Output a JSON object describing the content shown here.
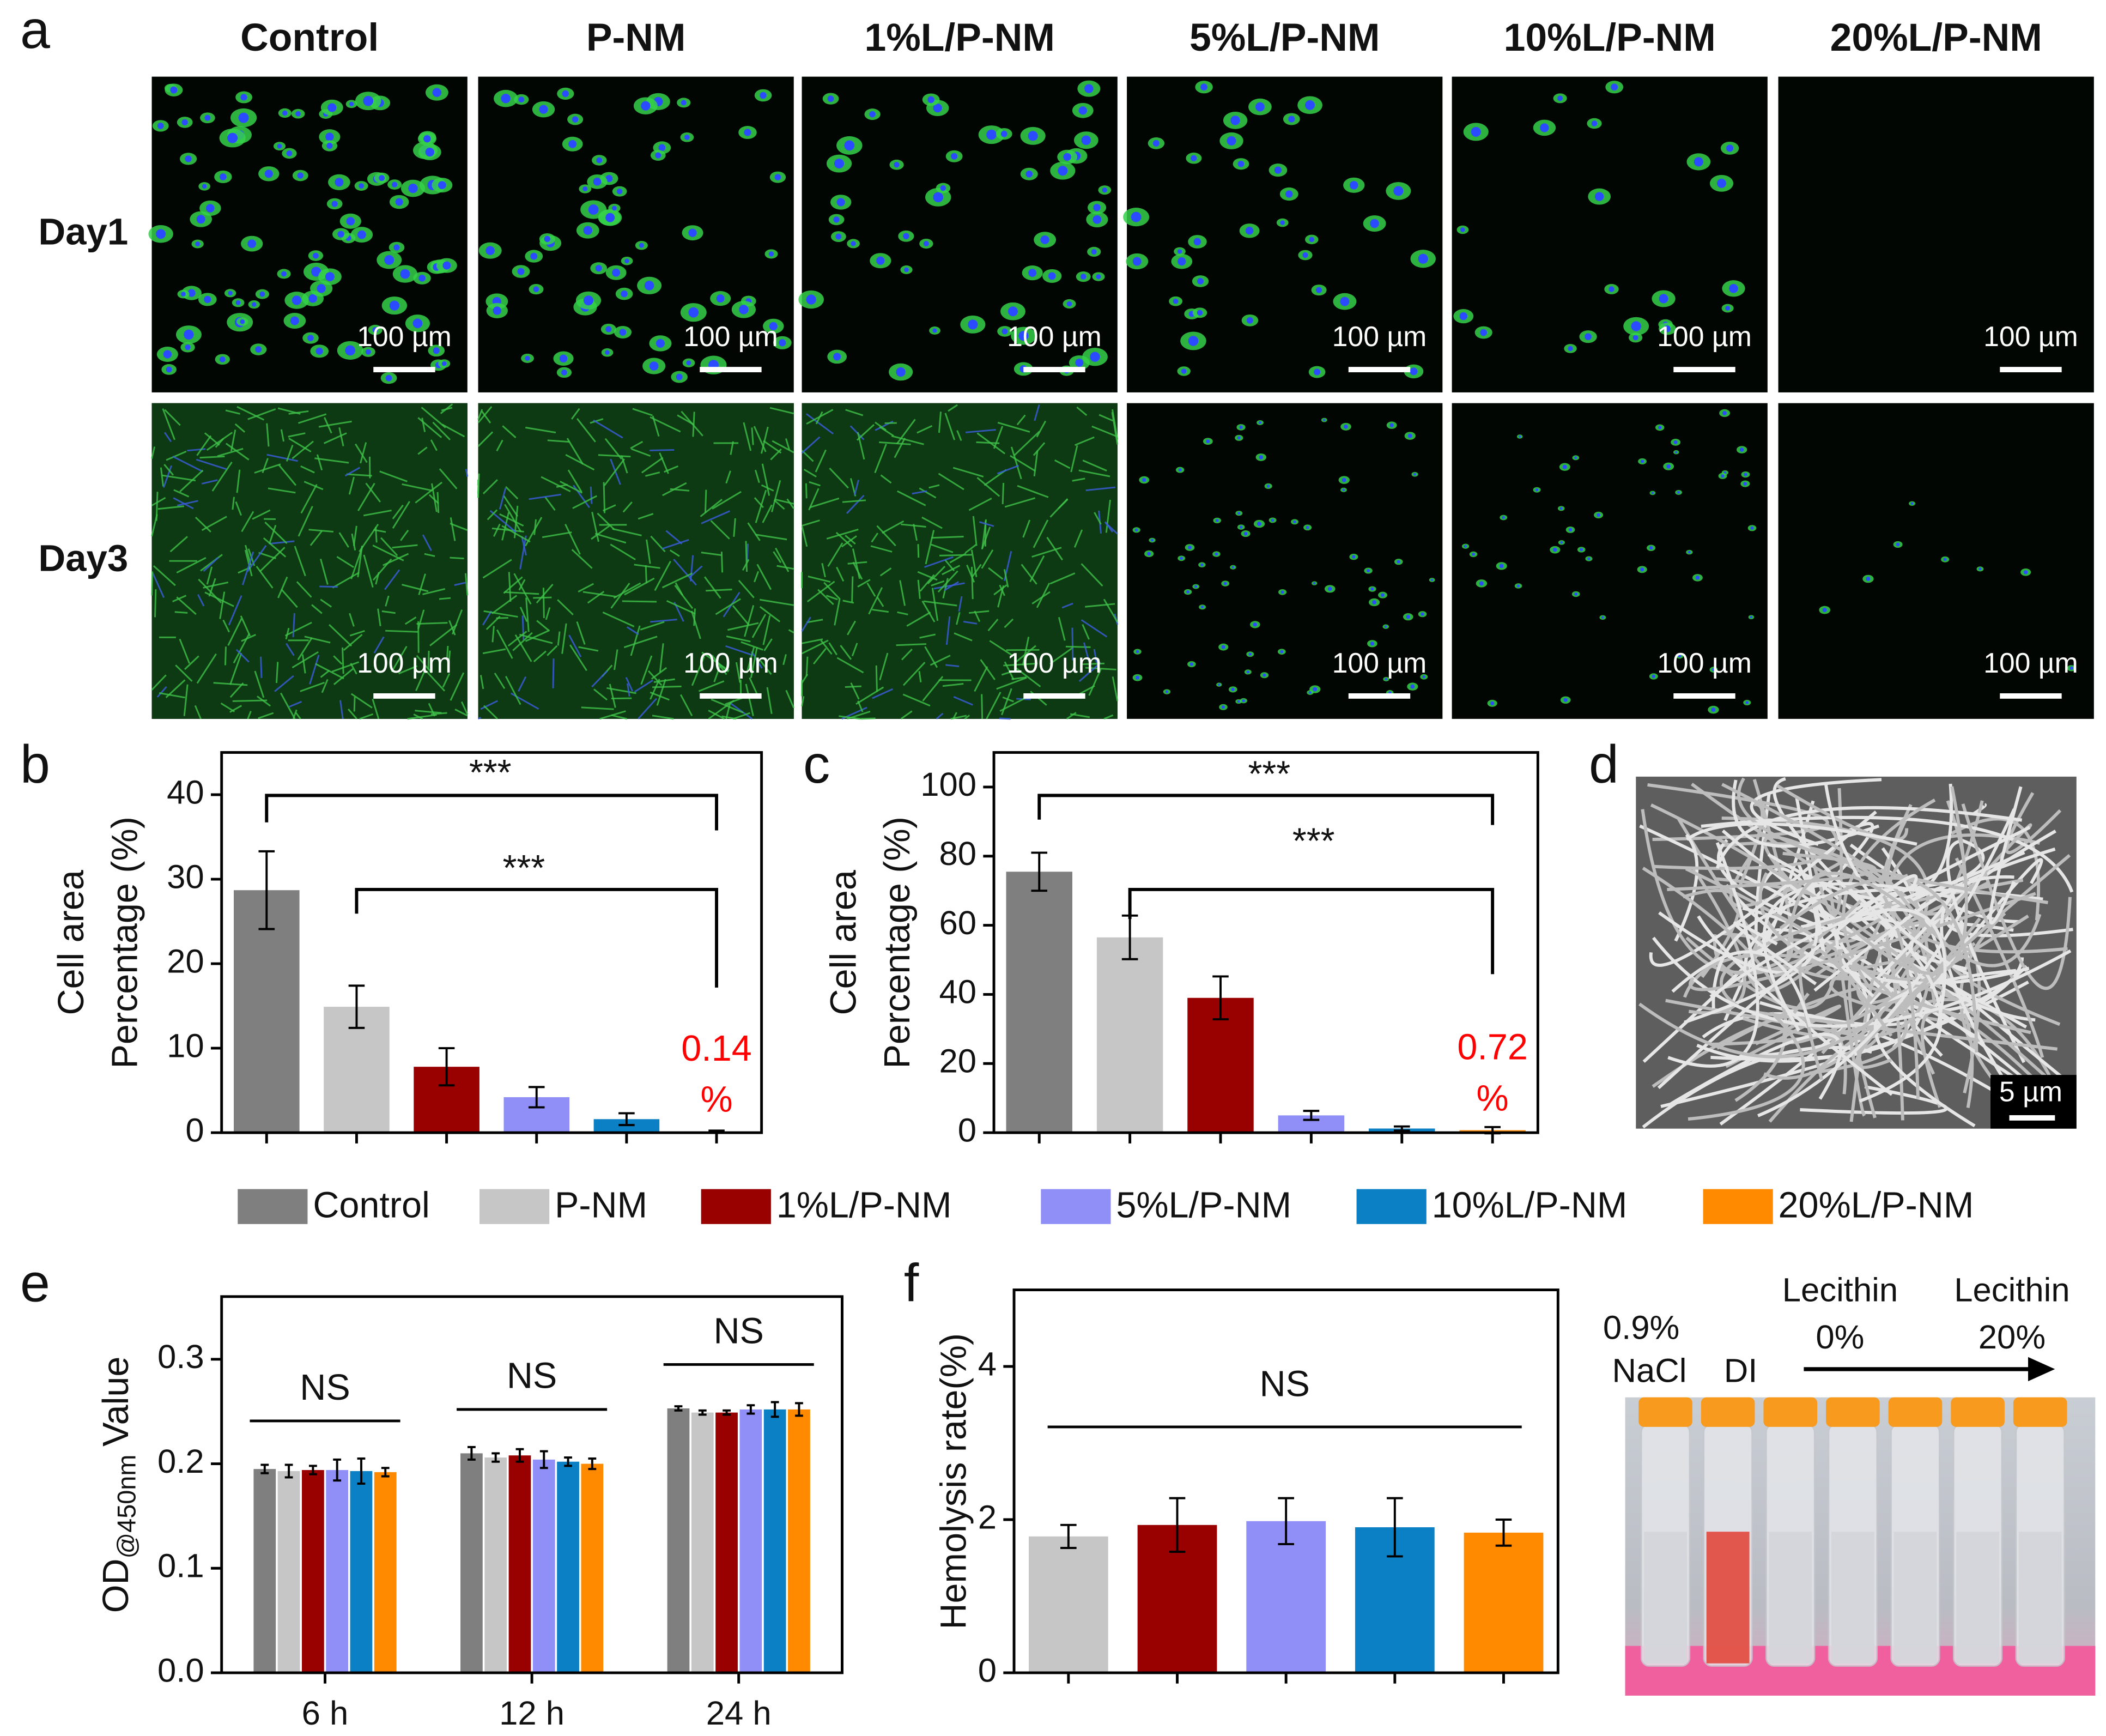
{
  "panel_labels": [
    "a",
    "b",
    "c",
    "d",
    "e",
    "f"
  ],
  "microscopy": {
    "columns": [
      "Control",
      "P-NM",
      "1%L/P-NM",
      "5%L/P-NM",
      "10%L/P-NM",
      "20%L/P-NM"
    ],
    "rows": [
      "Day1",
      "Day3"
    ],
    "scale_bar": "100 µm"
  },
  "sem_scale_bar": "5 µm",
  "photo_labels": [
    "0.9%",
    "NaCl",
    "DI",
    "Lecithin",
    "0%",
    "Lecithin",
    "20%"
  ],
  "chart_data": [
    {
      "type": "bar",
      "ylabel": [
        "Cell area",
        "Percentage (%)"
      ],
      "categories": [
        null,
        null,
        null,
        null,
        null,
        null
      ],
      "values": [
        28.7,
        14.9,
        7.8,
        4.2,
        1.6,
        0.14
      ],
      "errors": [
        4.6,
        2.5,
        2.2,
        1.2,
        0.7,
        0.1
      ],
      "colors": [
        "#7f7f7f",
        "#c6c6c6",
        "#990000",
        "#8f8ff7",
        "#0b80c4",
        "#ff8a00"
      ],
      "value_labels": [
        null,
        null,
        null,
        null,
        null,
        "0.14 %"
      ],
      "value_label_color": "#ff0000",
      "annotations": [
        "***",
        "***"
      ],
      "ylim": [
        0,
        45
      ],
      "yticks": [
        0,
        10,
        20,
        30,
        40
      ]
    },
    {
      "type": "bar",
      "ylabel": [
        "Cell area",
        "Percentage (%)"
      ],
      "categories": [
        null,
        null,
        null,
        null,
        null,
        null
      ],
      "values": [
        75.5,
        56.5,
        39,
        5,
        1.2,
        0.72
      ],
      "errors": [
        5.5,
        6.3,
        6.2,
        1.3,
        0.6,
        0.9
      ],
      "colors": [
        "#7f7f7f",
        "#c6c6c6",
        "#990000",
        "#8f8ff7",
        "#0b80c4",
        "#ff8a00"
      ],
      "value_labels": [
        null,
        null,
        null,
        null,
        null,
        "0.72 %"
      ],
      "value_label_color": "#ff0000",
      "annotations": [
        "***",
        "***"
      ],
      "ylim": [
        0,
        110
      ],
      "yticks": [
        0,
        20,
        40,
        60,
        80,
        100
      ]
    },
    {
      "type": "grouped_bar",
      "ylabel": [
        "OD",
        "@450nm",
        "Value"
      ],
      "categories": [
        "6 h",
        "12 h",
        "24 h"
      ],
      "series": [
        {
          "name": "Control",
          "color": "#7f7f7f",
          "values": [
            0.195,
            0.21,
            0.253
          ],
          "errors": [
            0.004,
            0.006,
            0.002
          ]
        },
        {
          "name": "P-NM",
          "color": "#c6c6c6",
          "values": [
            0.193,
            0.206,
            0.249
          ],
          "errors": [
            0.006,
            0.004,
            0.002
          ]
        },
        {
          "name": "1%L/P-NM",
          "color": "#990000",
          "values": [
            0.194,
            0.208,
            0.249
          ],
          "errors": [
            0.004,
            0.006,
            0.002
          ]
        },
        {
          "name": "5%L/P-NM",
          "color": "#8f8ff7",
          "values": [
            0.194,
            0.204,
            0.252
          ],
          "errors": [
            0.01,
            0.008,
            0.004
          ]
        },
        {
          "name": "10%L/P-NM",
          "color": "#0b80c4",
          "values": [
            0.193,
            0.202,
            0.252
          ],
          "errors": [
            0.012,
            0.004,
            0.007
          ]
        },
        {
          "name": "20%L/P-NM",
          "color": "#ff8a00",
          "values": [
            0.192,
            0.2,
            0.252
          ],
          "errors": [
            0.004,
            0.005,
            0.006
          ]
        }
      ],
      "annotations": [
        "NS",
        "NS",
        "NS"
      ],
      "ylim": [
        0,
        0.36
      ],
      "yticks": [
        {
          "value": 0,
          "label": "0.0"
        },
        0.1,
        0.2,
        0.3
      ]
    },
    {
      "type": "bar",
      "ylabel": "Hemolysis rate(%)",
      "categories": [
        null,
        null,
        null,
        null,
        null
      ],
      "values": [
        1.78,
        1.93,
        1.98,
        1.9,
        1.83
      ],
      "errors": [
        0.15,
        0.35,
        0.3,
        0.38,
        0.17
      ],
      "colors": [
        "#c6c6c6",
        "#990000",
        "#8f8ff7",
        "#0b80c4",
        "#ff8a00"
      ],
      "annotations": [
        "NS"
      ],
      "ylim": [
        0,
        5
      ],
      "yticks": [
        0,
        2,
        4
      ]
    }
  ]
}
